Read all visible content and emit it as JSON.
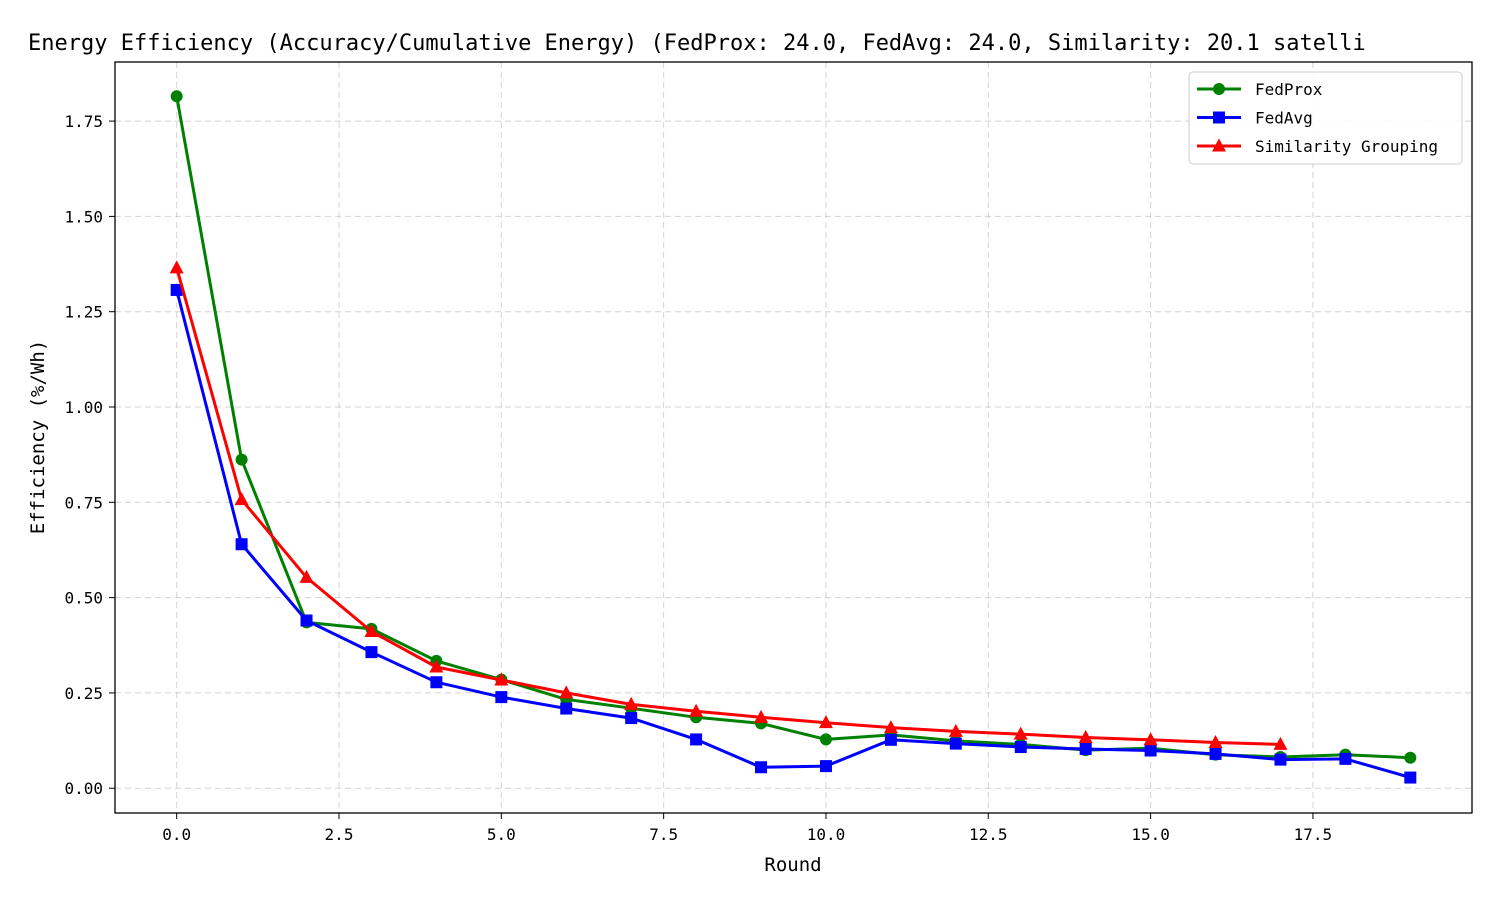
{
  "chart_data": {
    "type": "line",
    "title": "Energy Efficiency (Accuracy/Cumulative Energy) (FedProx: 24.0, FedAvg: 24.0, Similarity: 20.1 satelli",
    "xlabel": "Round",
    "ylabel": "Efficiency (%/Wh)",
    "xlim": [
      -0.95,
      19.95
    ],
    "ylim": [
      -0.065,
      1.905
    ],
    "xticks": [
      0.0,
      2.5,
      5.0,
      7.5,
      10.0,
      12.5,
      15.0,
      17.5
    ],
    "xtick_labels": [
      "0.0",
      "2.5",
      "5.0",
      "7.5",
      "10.0",
      "12.5",
      "15.0",
      "17.5"
    ],
    "yticks": [
      0.0,
      0.25,
      0.5,
      0.75,
      1.0,
      1.25,
      1.5,
      1.75
    ],
    "ytick_labels": [
      "0.00",
      "0.25",
      "0.50",
      "0.75",
      "1.00",
      "1.25",
      "1.50",
      "1.75"
    ],
    "grid": true,
    "legend_position": "top-right",
    "series": [
      {
        "name": "FedProx",
        "color": "#008000",
        "marker": "circle",
        "x": [
          0,
          1,
          2,
          3,
          4,
          5,
          6,
          7,
          8,
          9,
          10,
          11,
          12,
          13,
          14,
          15,
          16,
          17,
          18,
          19
        ],
        "values": [
          1.815,
          0.862,
          0.435,
          0.418,
          0.334,
          0.285,
          0.233,
          0.21,
          0.186,
          0.17,
          0.128,
          0.14,
          0.124,
          0.115,
          0.1,
          0.105,
          0.088,
          0.082,
          0.088,
          0.08
        ]
      },
      {
        "name": "FedAvg",
        "color": "#0000ff",
        "marker": "square",
        "x": [
          0,
          1,
          2,
          3,
          4,
          5,
          6,
          7,
          8,
          9,
          10,
          11,
          12,
          13,
          14,
          15,
          16,
          17,
          18,
          19
        ],
        "values": [
          1.307,
          0.64,
          0.44,
          0.357,
          0.278,
          0.239,
          0.209,
          0.184,
          0.128,
          0.055,
          0.058,
          0.127,
          0.117,
          0.108,
          0.103,
          0.099,
          0.09,
          0.075,
          0.077,
          0.028
        ]
      },
      {
        "name": "Similarity Grouping",
        "color": "#ff0000",
        "marker": "triangle",
        "x": [
          0,
          1,
          2,
          3,
          4,
          5,
          6,
          7,
          8,
          9,
          10,
          11,
          12,
          13,
          14,
          15,
          16,
          17
        ],
        "values": [
          1.365,
          0.757,
          0.553,
          0.411,
          0.318,
          0.284,
          0.25,
          0.22,
          0.202,
          0.186,
          0.172,
          0.159,
          0.149,
          0.142,
          0.133,
          0.127,
          0.12,
          0.115
        ]
      }
    ]
  }
}
